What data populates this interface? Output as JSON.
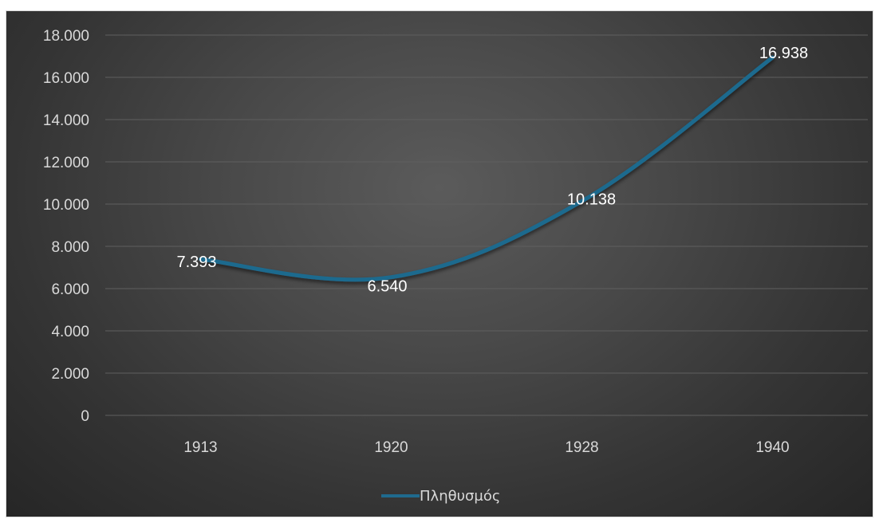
{
  "chart_data": {
    "type": "line",
    "categories": [
      "1913",
      "1920",
      "1928",
      "1940"
    ],
    "series": [
      {
        "name": "Πληθυσμός",
        "values": [
          7393,
          6540,
          10138,
          16938
        ],
        "data_labels": [
          "7.393",
          "6.540",
          "10.138",
          "16.938"
        ],
        "color": "#1f6a8e"
      }
    ],
    "ylim": [
      0,
      18000
    ],
    "yticks": [
      0,
      2000,
      4000,
      6000,
      8000,
      10000,
      12000,
      14000,
      16000,
      18000
    ],
    "ytick_labels": [
      "0",
      "2.000",
      "4.000",
      "6.000",
      "8.000",
      "10.000",
      "12.000",
      "14.000",
      "16.000",
      "18.000"
    ],
    "grid": true,
    "legend_position": "bottom",
    "title": "",
    "xlabel": "",
    "ylabel": ""
  },
  "colors": {
    "background_center": "#5b5b5b",
    "background_edge": "#262626",
    "gridline": "#5f5f5f",
    "text": "#d9d9d9",
    "series_line": "#1f6a8e"
  }
}
